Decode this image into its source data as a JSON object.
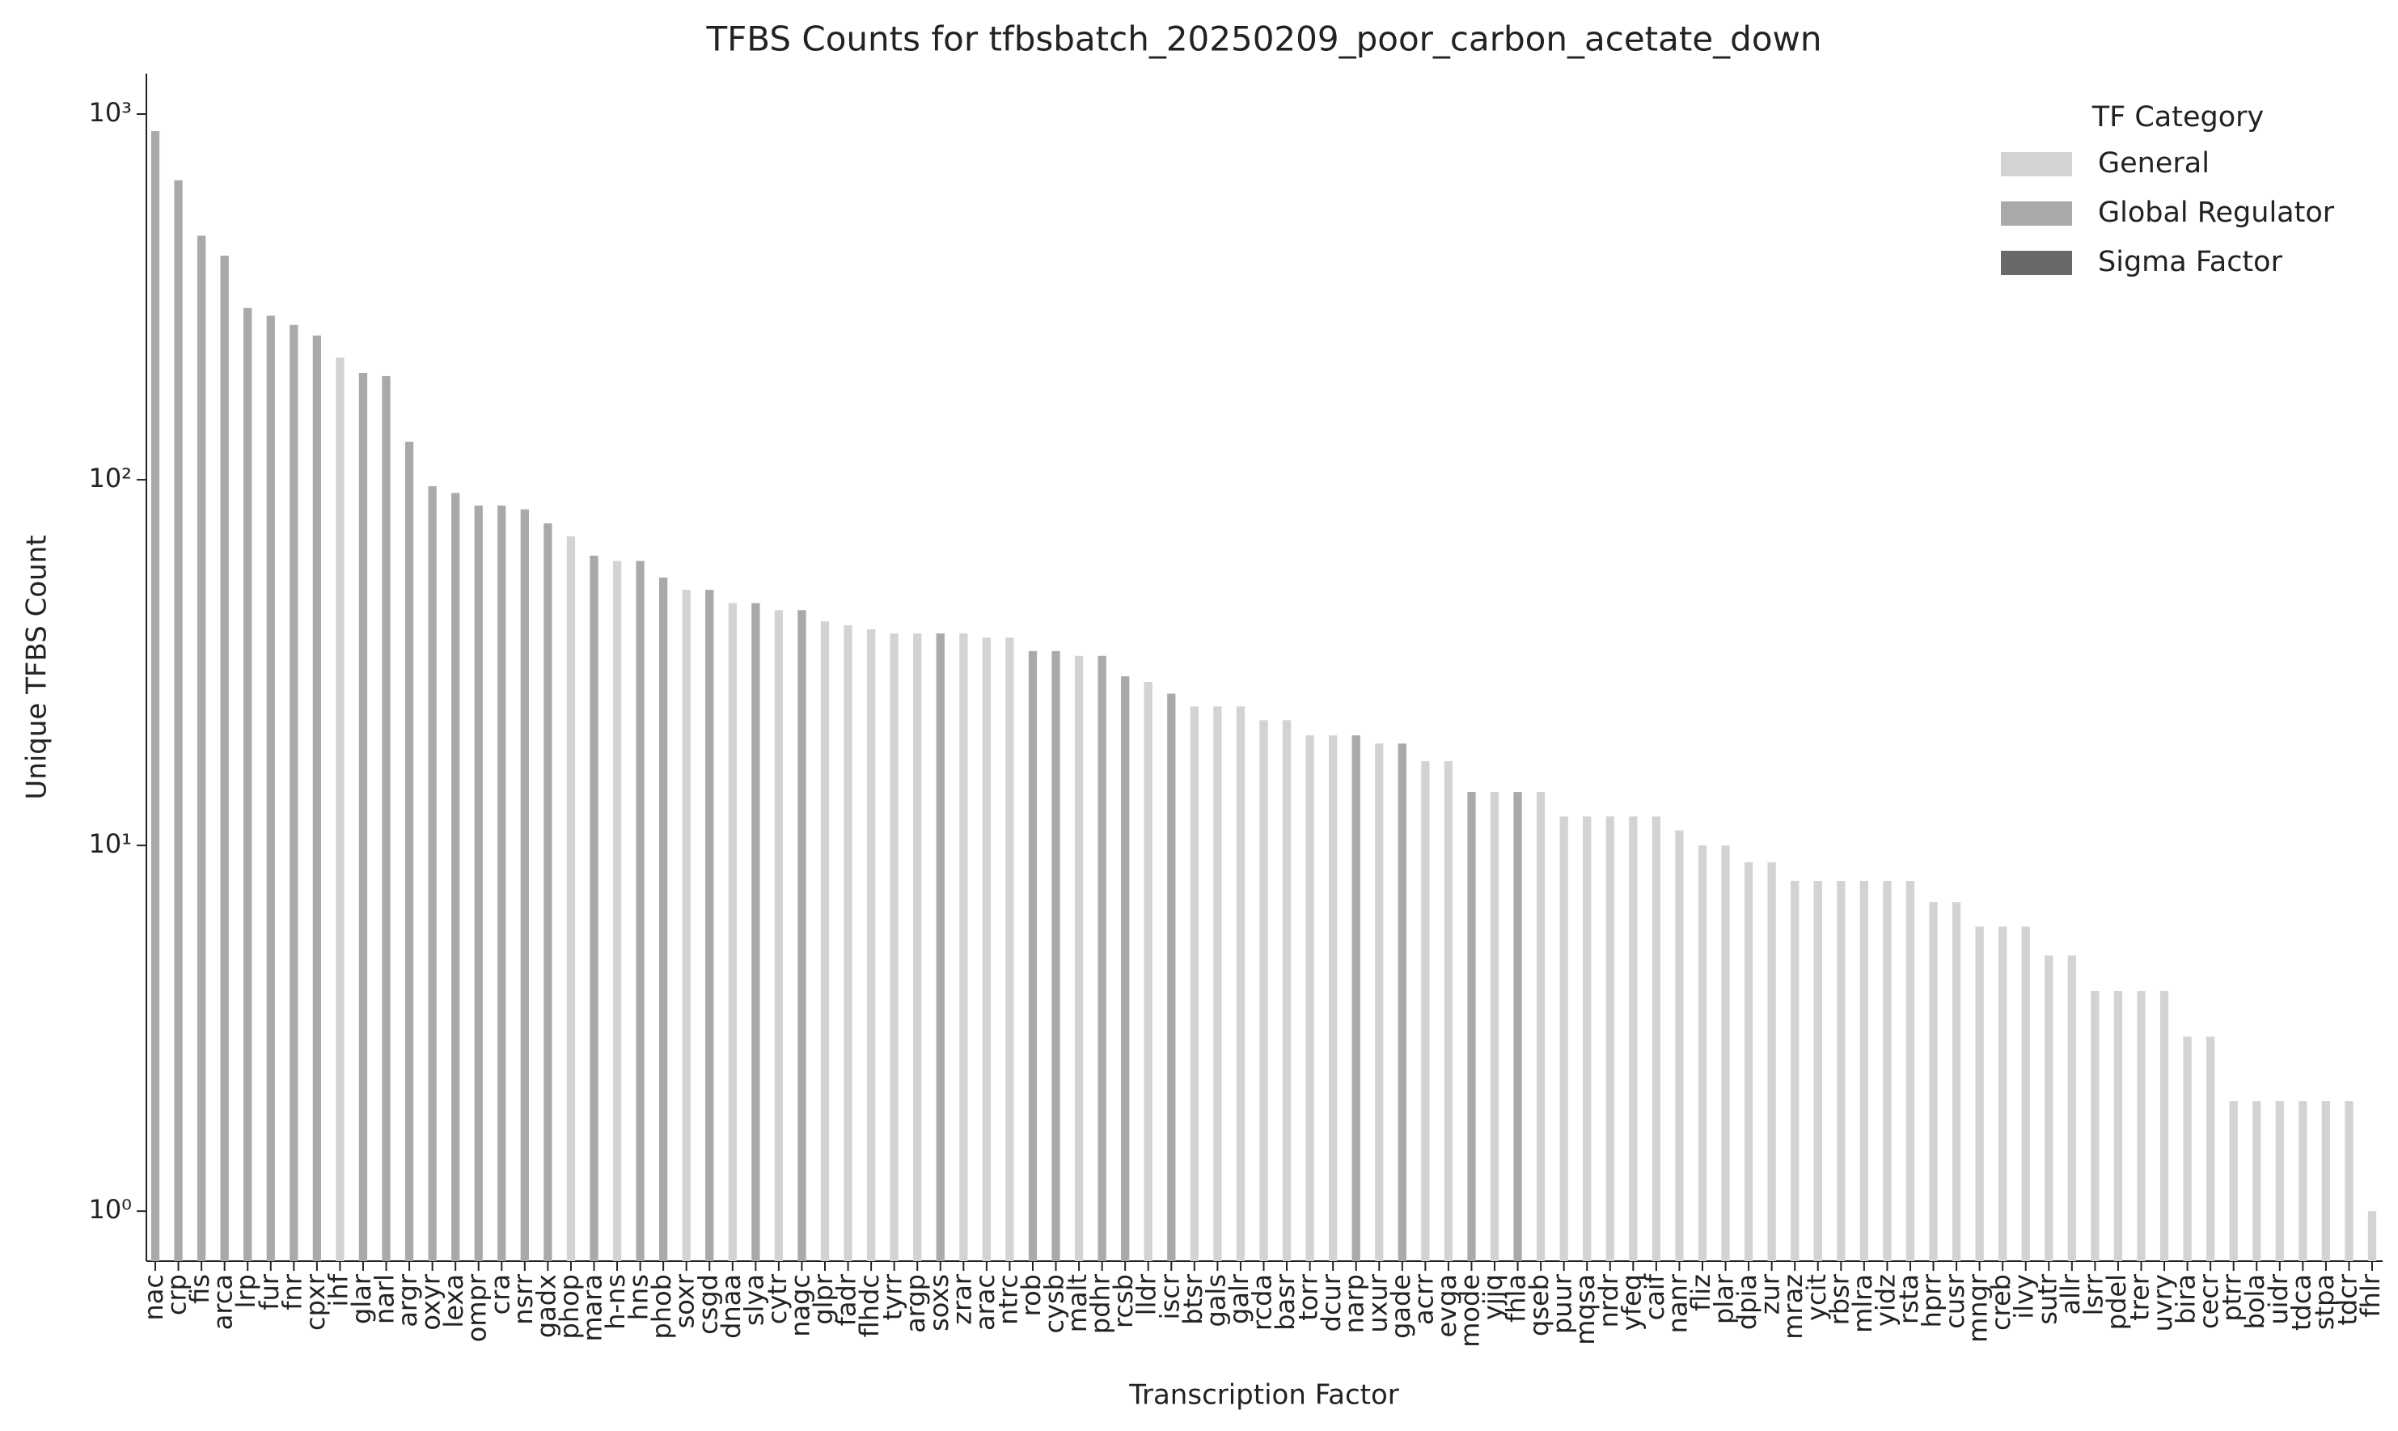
{
  "chart_data": {
    "type": "bar",
    "title": "TFBS Counts for tfbsbatch_20250209_poor_carbon_acetate_down",
    "xlabel": "Transcription Factor",
    "ylabel": "Unique TFBS Count",
    "yscale": "log",
    "ylim": [
      0.73,
      1290
    ],
    "yticks": [
      {
        "value": 1,
        "label": "10⁰"
      },
      {
        "value": 10,
        "label": "10¹"
      },
      {
        "value": 100,
        "label": "10²"
      },
      {
        "value": 1000,
        "label": "10³"
      }
    ],
    "legend_title": "TF Category",
    "legend_position": "upper right",
    "categories": [
      "nac",
      "crp",
      "fis",
      "arca",
      "lrp",
      "fur",
      "fnr",
      "cpxr",
      "ihf",
      "glar",
      "narl",
      "argr",
      "oxyr",
      "lexa",
      "ompr",
      "cra",
      "nsrr",
      "gadx",
      "phop",
      "mara",
      "h-ns",
      "hns",
      "phob",
      "soxr",
      "csgd",
      "dnaa",
      "slya",
      "cytr",
      "nagc",
      "glpr",
      "fadr",
      "flhdc",
      "tyrr",
      "argp",
      "soxs",
      "zrar",
      "arac",
      "ntrc",
      "rob",
      "cysb",
      "malt",
      "pdhr",
      "rcsb",
      "lldr",
      "iscr",
      "btsr",
      "gals",
      "galr",
      "rcda",
      "basr",
      "torr",
      "dcur",
      "narp",
      "uxur",
      "gade",
      "acrr",
      "evga",
      "mode",
      "yjjq",
      "fhla",
      "qseb",
      "puur",
      "mqsa",
      "nrdr",
      "yfeq",
      "caif",
      "nanr",
      "fliz",
      "plar",
      "dpia",
      "zur",
      "mraz",
      "ycit",
      "rbsr",
      "mlra",
      "yidz",
      "rsta",
      "hprr",
      "cusr",
      "mngr",
      "creb",
      "ilvy",
      "sutr",
      "allr",
      "lsrr",
      "pdel",
      "trer",
      "uvry",
      "bira",
      "cecr",
      "ptrr",
      "bola",
      "uidr",
      "tdca",
      "stpa",
      "tdcr",
      "fhlr"
    ],
    "series": [
      {
        "name": "General",
        "color": "#d3d3d3",
        "values": [
          null,
          null,
          null,
          null,
          null,
          null,
          null,
          null,
          216,
          null,
          null,
          null,
          null,
          null,
          null,
          null,
          null,
          null,
          70,
          null,
          60,
          null,
          null,
          50,
          null,
          46,
          null,
          44,
          null,
          41,
          40,
          39,
          38,
          38,
          null,
          38,
          37,
          37,
          null,
          null,
          33,
          null,
          null,
          28,
          null,
          24,
          24,
          24,
          22,
          22,
          20,
          20,
          null,
          19,
          null,
          17,
          17,
          null,
          14,
          null,
          14,
          12,
          12,
          12,
          12,
          12,
          11,
          10,
          10,
          9,
          9,
          8,
          8,
          8,
          8,
          8,
          8,
          7,
          7,
          6,
          6,
          6,
          5,
          5,
          4,
          4,
          4,
          4,
          3,
          3,
          2,
          2,
          2,
          2,
          2,
          2,
          1
        ]
      },
      {
        "name": "Global Regulator",
        "color": "#a9a9a9",
        "values": [
          898,
          659,
          465,
          410,
          295,
          281,
          265,
          248,
          null,
          196,
          192,
          127,
          96,
          92,
          85,
          85,
          83,
          76,
          null,
          62,
          null,
          60,
          54,
          null,
          50,
          null,
          46,
          null,
          44,
          null,
          null,
          null,
          null,
          null,
          38,
          null,
          null,
          null,
          34,
          34,
          null,
          33,
          29,
          null,
          26,
          null,
          null,
          null,
          null,
          null,
          null,
          null,
          20,
          null,
          19,
          null,
          null,
          14,
          null,
          14,
          null,
          null,
          null,
          null,
          null,
          null,
          null,
          null,
          null,
          null,
          null,
          null,
          null,
          null,
          null,
          null,
          null,
          null,
          null,
          null,
          null,
          null,
          null,
          null,
          null,
          null,
          null,
          null,
          null,
          null,
          null,
          null,
          null,
          null,
          null,
          null,
          null
        ]
      },
      {
        "name": "Sigma Factor",
        "color": "#696969",
        "values": [
          null,
          null,
          null,
          null,
          null,
          null,
          null,
          null,
          null,
          null,
          null,
          null,
          null,
          null,
          null,
          null,
          null,
          null,
          null,
          null,
          null,
          null,
          null,
          null,
          null,
          null,
          null,
          null,
          null,
          null,
          null,
          null,
          null,
          null,
          null,
          null,
          null,
          null,
          null,
          null,
          null,
          null,
          null,
          null,
          null,
          null,
          null,
          null,
          null,
          null,
          null,
          null,
          null,
          null,
          null,
          null,
          null,
          null,
          null,
          null,
          null,
          null,
          null,
          null,
          null,
          null,
          null,
          null,
          null,
          null,
          null,
          null,
          null,
          null,
          null,
          null,
          null,
          null,
          null,
          null,
          null,
          null,
          null,
          null,
          null,
          null,
          null,
          null,
          null,
          null,
          null,
          null,
          null,
          null,
          null,
          null,
          null
        ]
      }
    ]
  }
}
